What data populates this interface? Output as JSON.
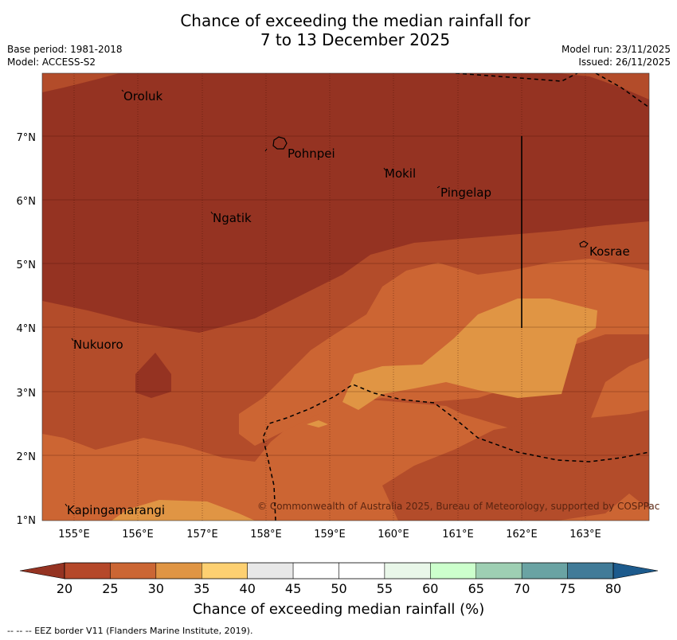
{
  "header": {
    "title_line1": "Chance of exceeding the median rainfall for",
    "title_line2": "7 to 13 December 2025",
    "base_period": "Base period: 1981-2018",
    "model": "Model: ACCESS-S2",
    "model_run": "Model run: 23/11/2025",
    "issued": "Issued: 26/11/2025"
  },
  "map": {
    "y_ticks": [
      "7°N",
      "6°N",
      "5°N",
      "4°N",
      "3°N",
      "2°N",
      "1°N"
    ],
    "x_ticks": [
      "155°E",
      "156°E",
      "157°E",
      "158°E",
      "159°E",
      "160°E",
      "161°E",
      "162°E",
      "163°E"
    ],
    "places": [
      "Oroluk",
      "Pohnpei",
      "Mokil",
      "Pingelap",
      "Ngatik",
      "Kosrae",
      "Nukuoro",
      "Kapingamarangi"
    ],
    "copyright": "© Commonwealth of Australia 2025, Bureau of Meteorology, supported by COSPPac"
  },
  "colorbar": {
    "ticks": [
      "20",
      "25",
      "30",
      "35",
      "40",
      "45",
      "50",
      "55",
      "60",
      "65",
      "70",
      "75",
      "80"
    ],
    "colors": [
      "#b5482a",
      "#cb6634",
      "#e09544",
      "#fdd071",
      "#e8e8e8",
      "#ffffff",
      "#ffffff",
      "#e9f7e9",
      "#ccffcc",
      "#9ecfb3",
      "#6aa3a3",
      "#417b98"
    ],
    "under_color": "#953322",
    "over_color": "#1d5b8d",
    "title": "Chance of exceeding median rainfall (%)"
  },
  "footnote": "--  --  -- EEZ border V11 (Flanders Marine Institute, 2019).",
  "colors": {
    "band_20": "#953322",
    "band_25": "#b34c2a",
    "band_30": "#cc6533",
    "band_35": "#e09544",
    "grid": "#3a0a00"
  }
}
